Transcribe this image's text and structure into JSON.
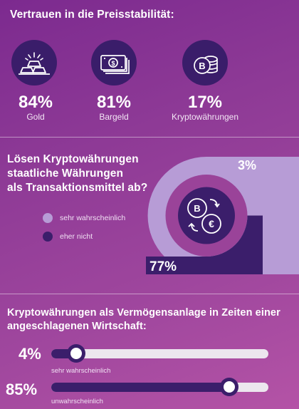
{
  "section1": {
    "title": "Vertrauen in die Preisstabilität:",
    "items": [
      {
        "value": "84%",
        "label": "Gold",
        "icon": "gold-bars-icon"
      },
      {
        "value": "81%",
        "label": "Bargeld",
        "icon": "cash-icon"
      },
      {
        "value": "17%",
        "label": "Kryptowährungen",
        "icon": "bitcoin-coins-icon"
      }
    ]
  },
  "section2": {
    "title_lines": [
      "Lösen Kryptowährungen",
      "staatliche Währungen",
      "als Transaktionsmittel ab?"
    ],
    "legend": [
      "sehr wahrscheinlich",
      "eher nicht"
    ],
    "value_labels": [
      "3%",
      "77%"
    ]
  },
  "section3": {
    "title_lines": [
      "Kryptowährungen als Vermögensanlage in Zeiten einer",
      "angeschlagenen Wirtschaft:"
    ],
    "bars": [
      {
        "value_label": "4%",
        "label": "sehr wahrscheinlich"
      },
      {
        "value_label": "85%",
        "label": "unwahrscheinlich"
      }
    ]
  },
  "colors": {
    "dark": "#3b1e6b",
    "light": "#b79cd6",
    "track": "#ece6ee",
    "background": "#9a4399"
  },
  "chart_data": [
    {
      "type": "bar",
      "title": "Vertrauen in die Preisstabilität:",
      "categories": [
        "Gold",
        "Bargeld",
        "Kryptowährungen"
      ],
      "values": [
        84,
        81,
        17
      ]
    },
    {
      "type": "pie",
      "title": "Lösen Kryptowährungen staatliche Währungen als Transaktionsmittel ab?",
      "categories": [
        "sehr wahrscheinlich",
        "eher nicht"
      ],
      "values": [
        3,
        77
      ]
    },
    {
      "type": "bar",
      "title": "Kryptowährungen als Vermögensanlage in Zeiten einer angeschlagenen Wirtschaft:",
      "categories": [
        "sehr wahrscheinlich",
        "unwahrscheinlich"
      ],
      "values": [
        4,
        85
      ],
      "ylim": [
        0,
        100
      ]
    }
  ]
}
